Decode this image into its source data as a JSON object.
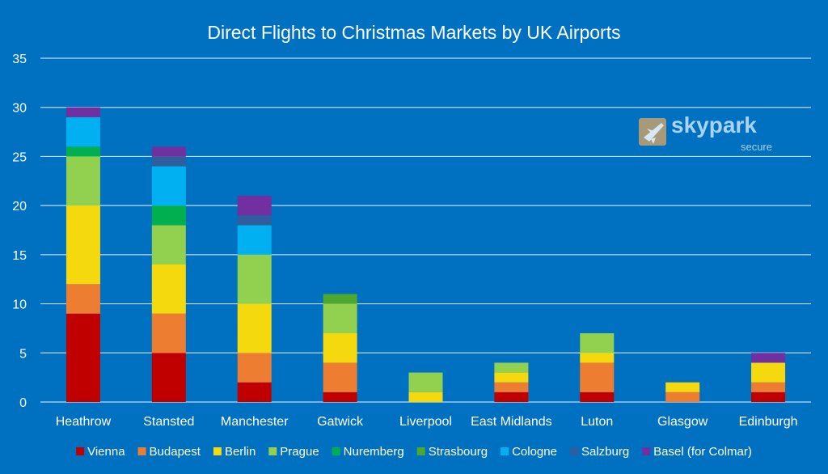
{
  "chart_data": {
    "type": "bar",
    "stacked": true,
    "title": "Direct Flights to Christmas Markets by UK Airports",
    "xlabel": "",
    "ylabel": "",
    "ylim": [
      0,
      35
    ],
    "yticks": [
      0,
      5,
      10,
      15,
      20,
      25,
      30,
      35
    ],
    "grid": true,
    "legend_position": "bottom",
    "background": "#0070C0",
    "categories": [
      "Heathrow",
      "Stansted",
      "Manchester",
      "Gatwick",
      "Liverpool",
      "East Midlands",
      "Luton",
      "Glasgow",
      "Edinburgh"
    ],
    "series": [
      {
        "name": "Vienna",
        "color": "#C00000",
        "values": [
          9,
          5,
          2,
          1,
          0,
          1,
          1,
          0,
          1
        ]
      },
      {
        "name": "Budapest",
        "color": "#ED7D31",
        "values": [
          3,
          4,
          3,
          3,
          0,
          1,
          3,
          1,
          1
        ]
      },
      {
        "name": "Berlin",
        "color": "#F5D90F",
        "values": [
          8,
          5,
          5,
          3,
          1,
          1,
          1,
          1,
          2
        ]
      },
      {
        "name": "Prague",
        "color": "#92D050",
        "values": [
          5,
          4,
          5,
          3,
          2,
          1,
          2,
          0,
          0
        ]
      },
      {
        "name": "Nuremberg",
        "color": "#00B050",
        "values": [
          1,
          2,
          0,
          0,
          0,
          0,
          0,
          0,
          0
        ]
      },
      {
        "name": "Strasbourg",
        "color": "#4EA72E",
        "values": [
          0,
          0,
          0,
          1,
          0,
          0,
          0,
          0,
          0
        ]
      },
      {
        "name": "Cologne",
        "color": "#00B0F0",
        "values": [
          3,
          4,
          3,
          0,
          0,
          0,
          0,
          0,
          0
        ]
      },
      {
        "name": "Salzburg",
        "color": "#2E5E9E",
        "values": [
          0,
          1,
          1,
          0,
          0,
          0,
          0,
          0,
          0
        ]
      },
      {
        "name": "Basel (for Colmar)",
        "color": "#7030A0",
        "values": [
          1,
          1,
          2,
          0,
          0,
          0,
          0,
          0,
          1
        ]
      }
    ]
  },
  "logo": {
    "name": "skypark",
    "sub": "secure"
  }
}
